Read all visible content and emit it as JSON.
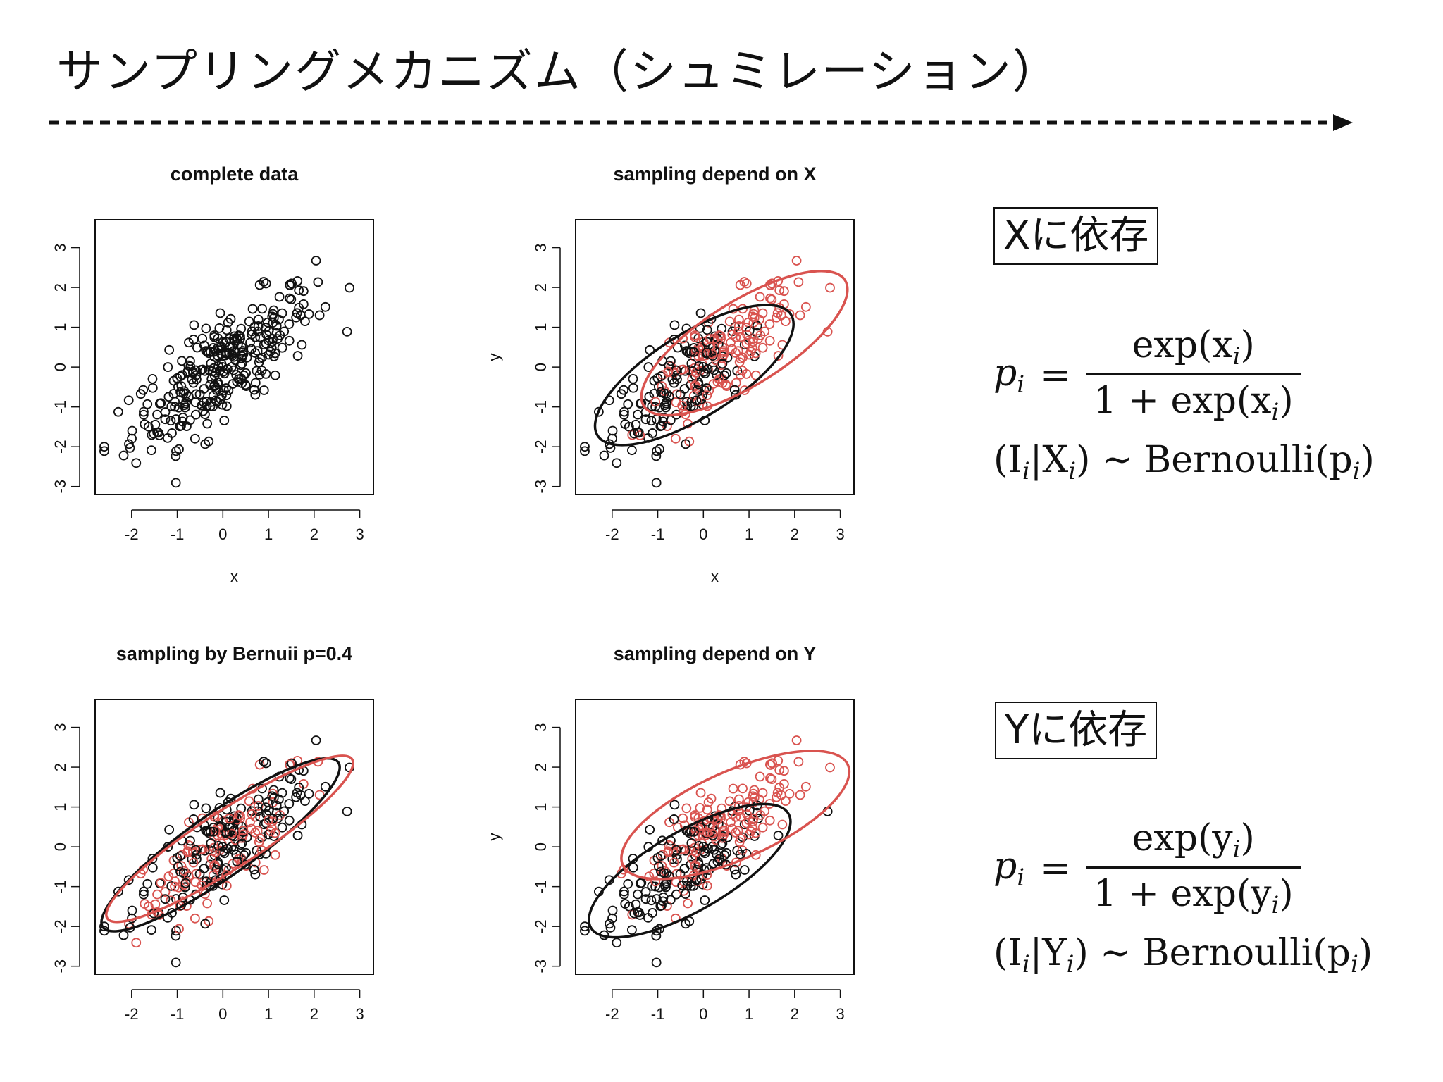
{
  "page": {
    "title": "サンプリングメカニズム（シュミレーション）"
  },
  "labels": {
    "depend_x": "Xに依存",
    "depend_y": "Yに依存"
  },
  "formulas": {
    "x": {
      "lhs": "p",
      "lhs_sub": "i",
      "num": "exp(x",
      "num_sub": "i",
      "num_end": ")",
      "den": "1 + exp(x",
      "den_sub": "i",
      "den_end": ")",
      "line2_a": "(I",
      "line2_a_sub": "i",
      "line2_b": "|X",
      "line2_b_sub": "i",
      "line2_c": ") ~ Bernoulli(p",
      "line2_c_sub": "i",
      "line2_d": ")"
    },
    "y": {
      "lhs": "p",
      "lhs_sub": "i",
      "num": "exp(y",
      "num_sub": "i",
      "num_end": ")",
      "den": "1 + exp(y",
      "den_sub": "i",
      "den_end": ")",
      "line2_a": "(I",
      "line2_a_sub": "i",
      "line2_b": "|Y",
      "line2_b_sub": "i",
      "line2_c": ") ~ Bernoulli(p",
      "line2_c_sub": "i",
      "line2_d": ")"
    }
  },
  "colors": {
    "black": "#111111",
    "red": "#d9534f"
  },
  "chart_data": [
    {
      "type": "scatter",
      "title": "complete data",
      "xlabel": "x",
      "ylabel": "",
      "xlim": [
        -2.8,
        3.3
      ],
      "ylim": [
        -3.2,
        3.7
      ],
      "xticks": [
        "-2",
        "-1",
        "0",
        "1",
        "2",
        "3"
      ],
      "yticks": [
        "-3",
        "-2",
        "-1",
        "0",
        "1",
        "2",
        "3"
      ],
      "selection": "none"
    },
    {
      "type": "scatter",
      "title": "sampling depend on X",
      "xlabel": "x",
      "ylabel": "y",
      "xlim": [
        -2.8,
        3.3
      ],
      "ylim": [
        -3.2,
        3.7
      ],
      "xticks": [
        "-2",
        "-1",
        "0",
        "1",
        "2",
        "3"
      ],
      "yticks": [
        "-3",
        "-2",
        "-1",
        "0",
        "1",
        "2",
        "3"
      ],
      "selection": "x",
      "ellipses": [
        {
          "color": "black",
          "cx": -0.2,
          "cy": -0.2,
          "rx": 2.5,
          "ry": 1.05,
          "angle": 32
        },
        {
          "color": "red",
          "cx": 0.9,
          "cy": 0.6,
          "rx": 2.6,
          "ry": 1.05,
          "angle": 32
        }
      ]
    },
    {
      "type": "scatter",
      "title": "sampling by Bernuii p=0.4",
      "xlabel": "",
      "ylabel": "",
      "xlim": [
        -2.8,
        3.3
      ],
      "ylim": [
        -3.2,
        3.7
      ],
      "xticks": [
        "-2",
        "-1",
        "0",
        "1",
        "2",
        "3"
      ],
      "yticks": [
        "-3",
        "-2",
        "-1",
        "0",
        "1",
        "2",
        "3"
      ],
      "selection": "random",
      "ellipses": [
        {
          "color": "black",
          "cx": -0.05,
          "cy": 0.05,
          "rx": 3.15,
          "ry": 0.8,
          "angle": 35
        },
        {
          "color": "red",
          "cx": 0.15,
          "cy": 0.2,
          "rx": 3.2,
          "ry": 0.72,
          "angle": 33
        }
      ]
    },
    {
      "type": "scatter",
      "title": "sampling depend on Y",
      "xlabel": "",
      "ylabel": "y",
      "xlim": [
        -2.8,
        3.3
      ],
      "ylim": [
        -3.2,
        3.7
      ],
      "xticks": [
        "-2",
        "-1",
        "0",
        "1",
        "2",
        "3"
      ],
      "yticks": [
        "-3",
        "-2",
        "-1",
        "0",
        "1",
        "2",
        "3"
      ],
      "selection": "y",
      "ellipses": [
        {
          "color": "black",
          "cx": -0.3,
          "cy": -0.6,
          "rx": 2.5,
          "ry": 1.0,
          "angle": 30
        },
        {
          "color": "red",
          "cx": 0.7,
          "cy": 0.8,
          "rx": 2.7,
          "ry": 1.1,
          "angle": 24
        }
      ]
    }
  ]
}
